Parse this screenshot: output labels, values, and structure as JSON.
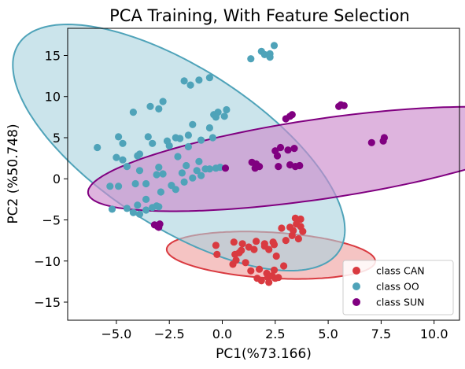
{
  "chart_data": {
    "type": "scatter",
    "title": "PCA Training, With Feature Selection",
    "xlabel": "PC1(%73.166)",
    "ylabel": "PC2 (%50.748)",
    "xlim": [
      -7.3,
      11.2
    ],
    "ylim": [
      -17.2,
      18.3
    ],
    "xticks": [
      -5.0,
      -2.5,
      0.0,
      2.5,
      5.0,
      7.5,
      10.0
    ],
    "xtick_labels": [
      "−5.0",
      "−2.5",
      "0.0",
      "2.5",
      "5.0",
      "7.5",
      "10.0"
    ],
    "yticks": [
      -15,
      -10,
      -5,
      0,
      5,
      10,
      15
    ],
    "ytick_labels": [
      "−15",
      "−10",
      "−5",
      "0",
      "5",
      "10",
      "15"
    ],
    "grid": false,
    "legend": {
      "position": "lower-right"
    },
    "series": [
      {
        "name": "class CAN",
        "color": "#d93a40",
        "ellipse": {
          "cx": 2.3,
          "cy": -9.3,
          "rx": 2.75,
          "ry": 5.0,
          "angle_deg": 78,
          "fill": "#f1b0af",
          "fill_opacity": 0.75,
          "stroke": "#d93a40"
        },
        "points": [
          [
            0.55,
            -7.7
          ],
          [
            0.95,
            -7.9
          ],
          [
            1.6,
            -7.6
          ],
          [
            2.0,
            -7.9
          ],
          [
            1.25,
            -8.3
          ],
          [
            0.9,
            -8.7
          ],
          [
            0.6,
            -9.2
          ],
          [
            0.8,
            -9.0
          ],
          [
            1.5,
            -8.6
          ],
          [
            2.0,
            -8.2
          ],
          [
            -0.3,
            -8.1
          ],
          [
            -0.25,
            -9.2
          ],
          [
            0.5,
            -10.4
          ],
          [
            0.65,
            -9.9
          ],
          [
            1.1,
            -10.2
          ],
          [
            1.75,
            -11.0
          ],
          [
            2.45,
            -11.1
          ],
          [
            2.9,
            -10.6
          ],
          [
            2.55,
            -9.4
          ],
          [
            2.4,
            -7.7
          ],
          [
            2.2,
            -8.6
          ],
          [
            2.45,
            -8.0
          ],
          [
            3.0,
            -7.5
          ],
          [
            3.3,
            -6.9
          ],
          [
            3.5,
            -5.5
          ],
          [
            3.35,
            -6.3
          ],
          [
            3.7,
            -5.8
          ],
          [
            3.2,
            -5.9
          ],
          [
            3.8,
            -6.4
          ],
          [
            3.6,
            -7.3
          ],
          [
            3.45,
            -4.8
          ],
          [
            2.8,
            -6.0
          ],
          [
            3.7,
            -4.9
          ],
          [
            1.65,
            -12.1
          ],
          [
            1.85,
            -12.4
          ],
          [
            2.15,
            -12.0
          ],
          [
            2.35,
            -11.8
          ],
          [
            2.5,
            -12.1
          ],
          [
            2.2,
            -12.6
          ],
          [
            2.1,
            -11.5
          ],
          [
            1.35,
            -11.2
          ],
          [
            2.65,
            -12.0
          ]
        ]
      },
      {
        "name": "class OO",
        "color": "#4fa3b9",
        "ellipse": {
          "cx": -2.05,
          "cy": 3.8,
          "rx": 5.45,
          "ry": 16.0,
          "angle_deg": 22,
          "fill": "#a8d2de",
          "fill_opacity": 0.6,
          "stroke": "#4fa3b9"
        },
        "points": [
          [
            -5.9,
            3.8
          ],
          [
            -4.9,
            5.1
          ],
          [
            -4.7,
            4.3
          ],
          [
            -5.0,
            2.6
          ],
          [
            -4.7,
            2.3
          ],
          [
            -3.9,
            3.0
          ],
          [
            -4.2,
            8.1
          ],
          [
            -3.4,
            8.8
          ],
          [
            -3.0,
            8.5
          ],
          [
            -2.8,
            9.4
          ],
          [
            -4.5,
            1.5
          ],
          [
            -4.0,
            2.8
          ],
          [
            -3.9,
            1.0
          ],
          [
            -3.5,
            5.1
          ],
          [
            -3.3,
            4.3
          ],
          [
            -2.5,
            4.0
          ],
          [
            -2.6,
            4.6
          ],
          [
            -2.2,
            5.0
          ],
          [
            -2.0,
            4.9
          ],
          [
            -1.6,
            5.3
          ],
          [
            -1.4,
            6.6
          ],
          [
            -1.0,
            4.7
          ],
          [
            -0.6,
            6.2
          ],
          [
            -0.4,
            7.8
          ],
          [
            -0.2,
            8.1
          ],
          [
            -0.3,
            7.5
          ],
          [
            0.2,
            8.4
          ],
          [
            -0.45,
            5.0
          ],
          [
            0.1,
            7.6
          ],
          [
            -1.6,
            3.9
          ],
          [
            -1.1,
            2.1
          ],
          [
            -1.7,
            1.6
          ],
          [
            -2.1,
            2.7
          ],
          [
            -2.8,
            0.6
          ],
          [
            -3.0,
            1.4
          ],
          [
            -2.4,
            -0.8
          ],
          [
            -1.9,
            0.7
          ],
          [
            -1.2,
            1.0
          ],
          [
            -0.8,
            1.2
          ],
          [
            -0.3,
            1.3
          ],
          [
            -0.1,
            1.4
          ],
          [
            -3.1,
            0.5
          ],
          [
            -3.6,
            -0.6
          ],
          [
            -4.1,
            -0.6
          ],
          [
            -5.3,
            -0.9
          ],
          [
            -4.9,
            -0.9
          ],
          [
            -5.2,
            -3.7
          ],
          [
            -4.5,
            -3.6
          ],
          [
            -4.0,
            -3.2
          ],
          [
            -3.6,
            -3.8
          ],
          [
            -3.9,
            -4.3
          ],
          [
            -4.2,
            -4.1
          ],
          [
            -3.3,
            -3.5
          ],
          [
            -3.1,
            -3.3
          ],
          [
            -3.0,
            -3.4
          ],
          [
            -3.6,
            -2.5
          ],
          [
            -2.9,
            -1.6
          ],
          [
            -2.2,
            -1.3
          ],
          [
            -1.8,
            -0.4
          ],
          [
            -1.4,
            0.1
          ],
          [
            -1.0,
            0.4
          ],
          [
            -0.6,
            1.2
          ],
          [
            -1.8,
            11.9
          ],
          [
            -1.5,
            11.4
          ],
          [
            -1.1,
            12.0
          ],
          [
            -0.6,
            12.3
          ],
          [
            1.35,
            14.6
          ],
          [
            1.85,
            15.5
          ],
          [
            2.0,
            15.1
          ],
          [
            2.25,
            15.2
          ],
          [
            2.25,
            14.8
          ],
          [
            2.45,
            16.2
          ]
        ]
      },
      {
        "name": "class SUN",
        "color": "#800080",
        "ellipse": {
          "cx": 4.6,
          "cy": 2.4,
          "rx": 11.8,
          "ry": 4.55,
          "angle_deg": 24,
          "fill": "#cc8ccc",
          "fill_opacity": 0.65,
          "stroke": "#800080"
        },
        "points": [
          [
            -2.95,
            -5.5
          ],
          [
            -3.05,
            -5.8
          ],
          [
            -3.2,
            -5.6
          ],
          [
            -3.0,
            -5.9
          ],
          [
            0.15,
            1.3
          ],
          [
            1.4,
            2.0
          ],
          [
            1.6,
            1.8
          ],
          [
            1.55,
            1.3
          ],
          [
            1.75,
            1.5
          ],
          [
            2.5,
            3.4
          ],
          [
            2.75,
            3.8
          ],
          [
            2.6,
            2.8
          ],
          [
            2.65,
            1.5
          ],
          [
            3.1,
            3.5
          ],
          [
            3.4,
            3.7
          ],
          [
            3.2,
            1.7
          ],
          [
            3.45,
            1.5
          ],
          [
            3.65,
            1.6
          ],
          [
            3.0,
            7.3
          ],
          [
            3.2,
            7.6
          ],
          [
            3.3,
            7.8
          ],
          [
            5.5,
            8.8
          ],
          [
            5.6,
            9.0
          ],
          [
            5.75,
            8.9
          ],
          [
            7.05,
            4.4
          ],
          [
            7.6,
            4.6
          ],
          [
            7.65,
            5.0
          ]
        ]
      }
    ]
  }
}
